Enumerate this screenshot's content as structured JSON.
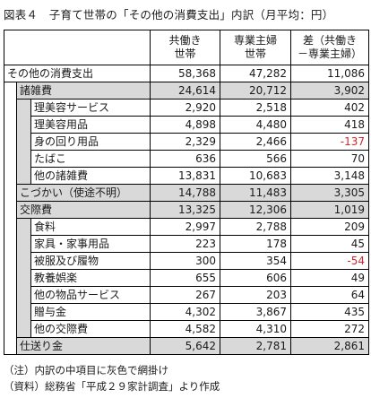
{
  "title": "図表４　子育て世帯の「その他の消費支出」内訳（月平均：円）",
  "header": {
    "col1": [
      "共働き",
      "世帯"
    ],
    "col2": [
      "専業主婦",
      "世帯"
    ],
    "col3": [
      "差（共働き",
      "－専業主婦）"
    ]
  },
  "rows": [
    {
      "label": "その他の消費支出",
      "level": 0,
      "v1": "58,368",
      "v2": "47,282",
      "v3": "11,086"
    },
    {
      "label": "諸雑費",
      "level": 1,
      "v1": "24,614",
      "v2": "20,712",
      "v3": "3,902"
    },
    {
      "label": "理美容サービス",
      "level": 2,
      "v1": "2,920",
      "v2": "2,518",
      "v3": "402"
    },
    {
      "label": "理美容用品",
      "level": 2,
      "v1": "4,898",
      "v2": "4,480",
      "v3": "418"
    },
    {
      "label": "身の回り用品",
      "level": 2,
      "v1": "2,329",
      "v2": "2,466",
      "v3": "-137"
    },
    {
      "label": "たばこ",
      "level": 2,
      "v1": "636",
      "v2": "566",
      "v3": "70"
    },
    {
      "label": "他の諸雑費",
      "level": 2,
      "v1": "13,831",
      "v2": "10,683",
      "v3": "3,148"
    },
    {
      "label": "こづかい（使途不明）",
      "level": 1,
      "v1": "14,788",
      "v2": "11,483",
      "v3": "3,305"
    },
    {
      "label": "交際費",
      "level": 1,
      "v1": "13,325",
      "v2": "12,306",
      "v3": "1,019"
    },
    {
      "label": "食料",
      "level": 2,
      "v1": "2,997",
      "v2": "2,788",
      "v3": "209"
    },
    {
      "label": "家具・家事用品",
      "level": 2,
      "v1": "223",
      "v2": "178",
      "v3": "45"
    },
    {
      "label": "被服及び履物",
      "level": 2,
      "v1": "300",
      "v2": "354",
      "v3": "-54"
    },
    {
      "label": "教養娯楽",
      "level": 2,
      "v1": "655",
      "v2": "606",
      "v3": "49"
    },
    {
      "label": "他の物品サービス",
      "level": 2,
      "v1": "267",
      "v2": "203",
      "v3": "64"
    },
    {
      "label": "贈与金",
      "level": 2,
      "v1": "4,302",
      "v2": "3,867",
      "v3": "435"
    },
    {
      "label": "他の交際費",
      "level": 2,
      "v1": "4,582",
      "v2": "4,310",
      "v3": "272"
    },
    {
      "label": "仕送り金",
      "level": 1,
      "v1": "5,642",
      "v2": "2,781",
      "v3": "2,861"
    }
  ],
  "notes": {
    "note": "（注）内訳の中項目に灰色で網掛け",
    "source": "（資料）総務省「平成２９家計調査」より作成"
  },
  "colors": {
    "shade": "#d9d9d9",
    "negative": "#d4262a"
  }
}
